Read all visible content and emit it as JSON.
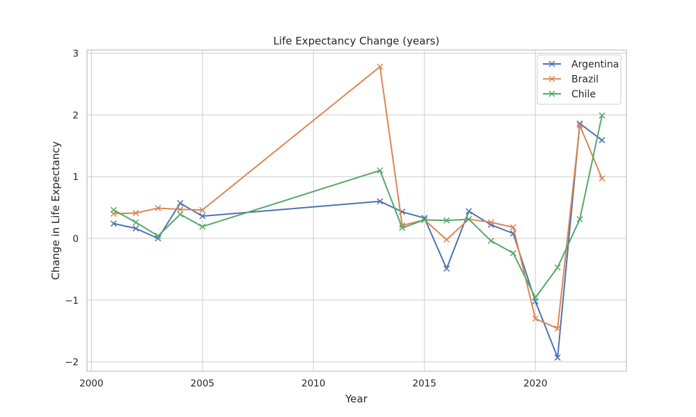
{
  "chart_data": {
    "type": "line",
    "title": "Life Expectancy Change (years)",
    "xlabel": "Year",
    "ylabel": "Change in Life Expectancy",
    "xlim": [
      1999.8,
      2024.1
    ],
    "ylim": [
      -2.15,
      3.05
    ],
    "xticks": [
      2000,
      2005,
      2010,
      2015,
      2020
    ],
    "xtick_labels": [
      "2000",
      "2005",
      "2010",
      "2015",
      "2020"
    ],
    "yticks": [
      -2,
      -1,
      0,
      1,
      2,
      3
    ],
    "ytick_labels": [
      "−2",
      "−1",
      "0",
      "1",
      "2",
      "3"
    ],
    "grid": true,
    "legend_position": "top-right",
    "marker": "x",
    "series": [
      {
        "name": "Argentina",
        "color": "#4c72b0",
        "x": [
          2001,
          2002,
          2003,
          2004,
          2005,
          2013,
          2014,
          2015,
          2016,
          2017,
          2018,
          2019,
          2020,
          2021,
          2022,
          2023
        ],
        "y": [
          0.24,
          0.16,
          0.0,
          0.57,
          0.36,
          0.6,
          0.43,
          0.33,
          -0.49,
          0.44,
          0.22,
          0.08,
          -1.02,
          -1.93,
          1.86,
          1.59
        ]
      },
      {
        "name": "Brazil",
        "color": "#dd8452",
        "x": [
          2001,
          2002,
          2003,
          2004,
          2005,
          2013,
          2014,
          2015,
          2016,
          2017,
          2018,
          2019,
          2020,
          2021,
          2022,
          2023
        ],
        "y": [
          0.4,
          0.41,
          0.49,
          0.47,
          0.46,
          2.78,
          0.21,
          0.3,
          -0.02,
          0.31,
          0.26,
          0.18,
          -1.3,
          -1.46,
          1.83,
          0.97
        ]
      },
      {
        "name": "Chile",
        "color": "#55a868",
        "x": [
          2001,
          2002,
          2003,
          2004,
          2005,
          2013,
          2014,
          2015,
          2016,
          2017,
          2018,
          2019,
          2020,
          2021,
          2022,
          2023
        ],
        "y": [
          0.46,
          0.26,
          0.04,
          0.39,
          0.19,
          1.1,
          0.17,
          0.3,
          0.29,
          0.31,
          -0.04,
          -0.24,
          -0.96,
          -0.47,
          0.31,
          1.99
        ]
      }
    ]
  }
}
